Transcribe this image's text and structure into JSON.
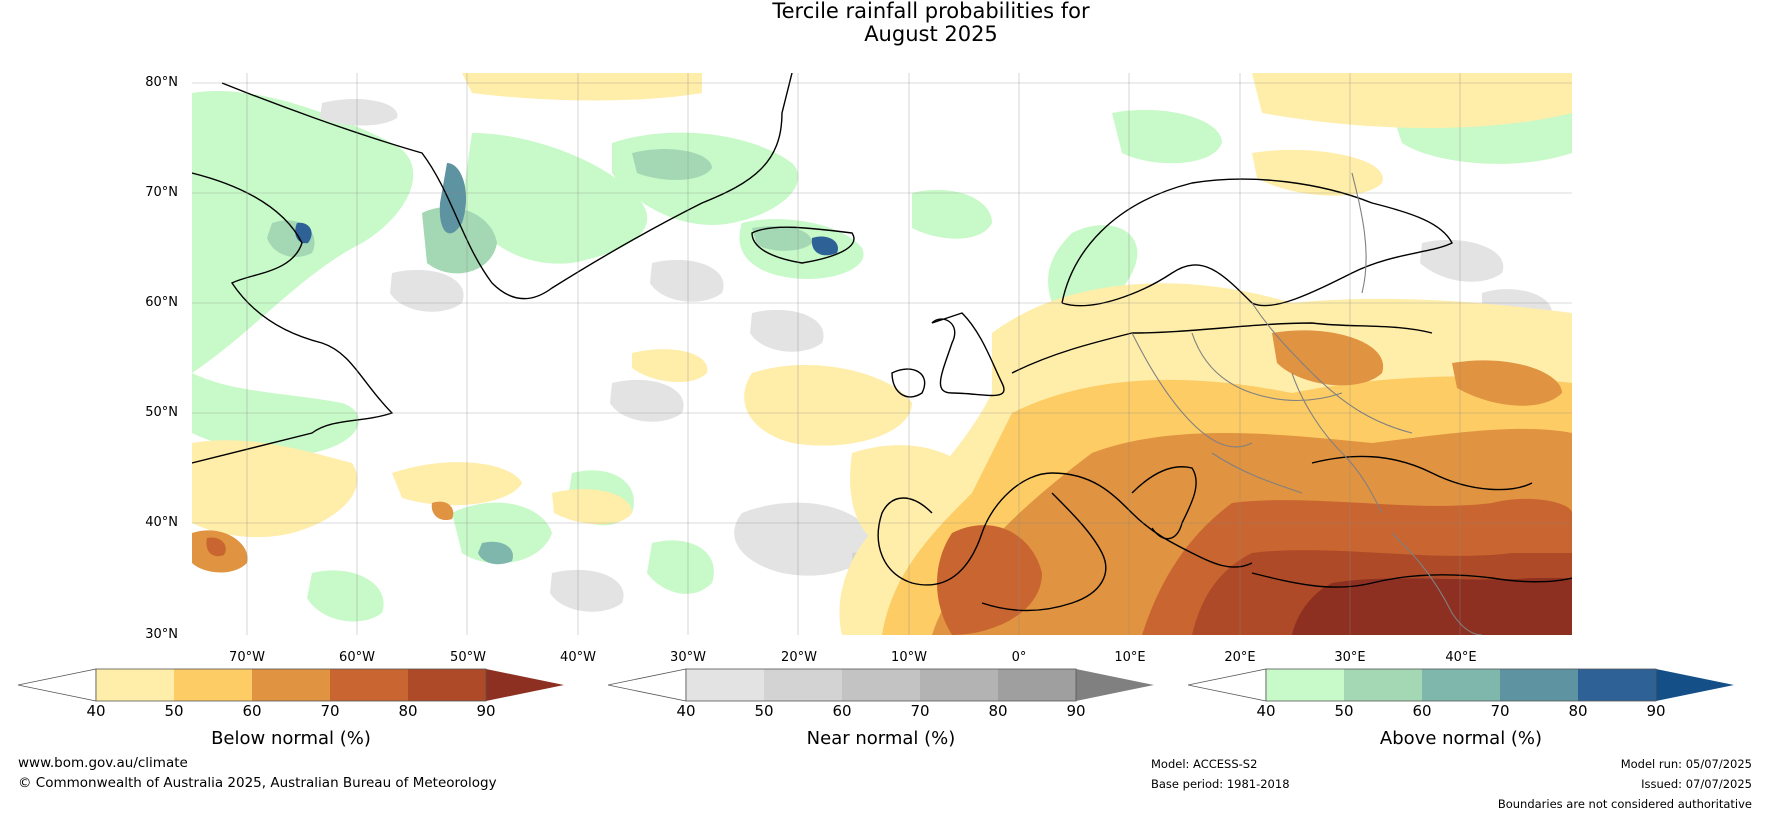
{
  "title_line1": "Tercile rainfall probabilities for",
  "title_line2": "August 2025",
  "map": {
    "lat_labels": [
      "80°N",
      "70°N",
      "60°N",
      "50°N",
      "40°N",
      "30°N"
    ],
    "lon_labels": [
      "70°W",
      "60°W",
      "50°W",
      "40°W",
      "30°W",
      "20°W",
      "10°W",
      "0°",
      "10°E",
      "20°E",
      "30°E",
      "40°E"
    ],
    "colors": {
      "below": [
        "#ffedaa",
        "#fdcc65",
        "#e09340",
        "#c96530",
        "#ae4a27",
        "#8d3021"
      ],
      "near": [
        "#e3e3e3",
        "#d3d3d3",
        "#c3c3c3",
        "#b3b3b3",
        "#9f9f9f",
        "#808080"
      ],
      "above": [
        "#c8f9c8",
        "#a4d8b4",
        "#7fb7ad",
        "#5e93a1",
        "#2e6296",
        "#154f87"
      ]
    }
  },
  "colorbars": [
    {
      "label": "Below normal (%)",
      "ticks": [
        "40",
        "50",
        "60",
        "70",
        "80",
        "90"
      ]
    },
    {
      "label": "Near normal (%)",
      "ticks": [
        "40",
        "50",
        "60",
        "70",
        "80",
        "90"
      ]
    },
    {
      "label": "Above normal (%)",
      "ticks": [
        "40",
        "50",
        "60",
        "70",
        "80",
        "90"
      ]
    }
  ],
  "footer": {
    "website": "www.bom.gov.au/climate",
    "copyright": "© Commonwealth of Australia 2025, Australian Bureau of Meteorology",
    "model": "Model: ACCESS-S2",
    "base_period": "Base period: 1981-2018",
    "model_run": "Model run: 05/07/2025",
    "issued": "Issued: 07/07/2025",
    "disclaimer": "Boundaries are not considered authoritative"
  }
}
